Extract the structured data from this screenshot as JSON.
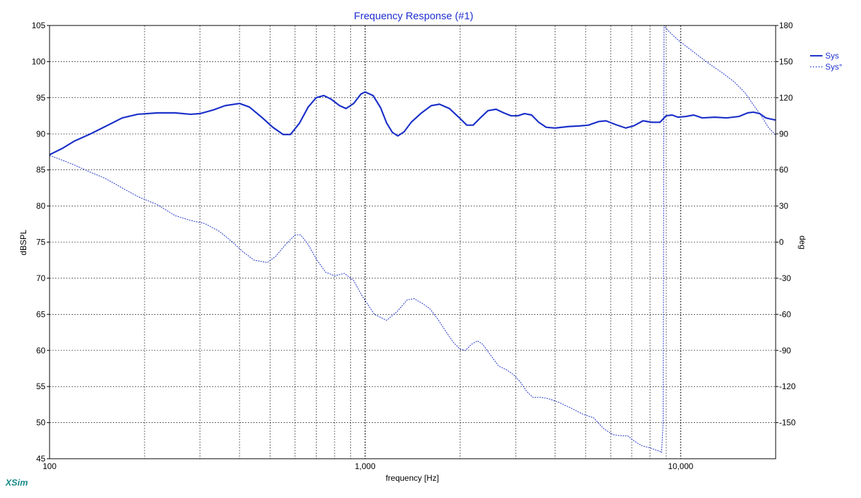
{
  "chart_data": {
    "type": "line",
    "title": "Frequency Response (#1)",
    "xlabel": "frequency [Hz]",
    "ylabel": "dBSPL",
    "y2label": "deg",
    "x_scale": "log",
    "xlim": [
      100,
      20000
    ],
    "ylim": [
      45,
      105
    ],
    "y2lim": [
      -180,
      180
    ],
    "x_tick_labels": [
      {
        "value": 100,
        "label": "100"
      },
      {
        "value": 1000,
        "label": "1,000"
      },
      {
        "value": 10000,
        "label": "10,000"
      }
    ],
    "y_ticks": [
      105,
      100,
      95,
      90,
      85,
      80,
      75,
      70,
      65,
      60,
      55,
      50,
      45
    ],
    "y2_ticks": [
      180,
      150,
      120,
      90,
      60,
      30,
      0,
      -30,
      -60,
      -90,
      -120,
      -150
    ],
    "grid": true,
    "legend": "right",
    "brand": "XSim",
    "series": [
      {
        "name": "Sys",
        "axis": "left",
        "style": "solid",
        "color": "#1a2fc8",
        "points": [
          [
            100,
            87.1
          ],
          [
            110,
            88
          ],
          [
            120,
            89
          ],
          [
            135,
            90
          ],
          [
            150,
            91
          ],
          [
            170,
            92.2
          ],
          [
            190,
            92.7
          ],
          [
            220,
            92.9
          ],
          [
            250,
            92.9
          ],
          [
            280,
            92.7
          ],
          [
            300,
            92.8
          ],
          [
            330,
            93.3
          ],
          [
            360,
            93.9
          ],
          [
            400,
            94.2
          ],
          [
            430,
            93.7
          ],
          [
            470,
            92.3
          ],
          [
            510,
            90.9
          ],
          [
            550,
            89.9
          ],
          [
            580,
            89.9
          ],
          [
            620,
            91.5
          ],
          [
            660,
            93.7
          ],
          [
            700,
            95
          ],
          [
            740,
            95.3
          ],
          [
            780,
            94.8
          ],
          [
            830,
            93.9
          ],
          [
            870,
            93.5
          ],
          [
            920,
            94.2
          ],
          [
            970,
            95.5
          ],
          [
            1000,
            95.8
          ],
          [
            1060,
            95.3
          ],
          [
            1120,
            93.6
          ],
          [
            1170,
            91.5
          ],
          [
            1220,
            90.2
          ],
          [
            1270,
            89.7
          ],
          [
            1330,
            90.3
          ],
          [
            1400,
            91.6
          ],
          [
            1500,
            92.8
          ],
          [
            1620,
            93.9
          ],
          [
            1720,
            94.1
          ],
          [
            1850,
            93.5
          ],
          [
            1980,
            92.3
          ],
          [
            2100,
            91.2
          ],
          [
            2200,
            91.2
          ],
          [
            2330,
            92.3
          ],
          [
            2450,
            93.2
          ],
          [
            2600,
            93.4
          ],
          [
            2750,
            92.9
          ],
          [
            2900,
            92.5
          ],
          [
            3050,
            92.5
          ],
          [
            3200,
            92.8
          ],
          [
            3370,
            92.6
          ],
          [
            3550,
            91.6
          ],
          [
            3750,
            90.9
          ],
          [
            4000,
            90.8
          ],
          [
            4400,
            91
          ],
          [
            4800,
            91.1
          ],
          [
            5100,
            91.2
          ],
          [
            5500,
            91.7
          ],
          [
            5800,
            91.8
          ],
          [
            6200,
            91.3
          ],
          [
            6700,
            90.8
          ],
          [
            7100,
            91.1
          ],
          [
            7600,
            91.8
          ],
          [
            8100,
            91.6
          ],
          [
            8600,
            91.6
          ],
          [
            9000,
            92.5
          ],
          [
            9400,
            92.6
          ],
          [
            9800,
            92.3
          ],
          [
            10400,
            92.4
          ],
          [
            11000,
            92.6
          ],
          [
            11700,
            92.2
          ],
          [
            12800,
            92.3
          ],
          [
            14000,
            92.2
          ],
          [
            15300,
            92.4
          ],
          [
            16300,
            92.9
          ],
          [
            17000,
            93
          ],
          [
            17800,
            92.8
          ],
          [
            18600,
            92.2
          ],
          [
            20000,
            91.9
          ]
        ]
      },
      {
        "name": "Sys°",
        "axis": "right",
        "style": "dashed",
        "color": "#1a2fc8",
        "points": [
          [
            100,
            72
          ],
          [
            110,
            68
          ],
          [
            120,
            64
          ],
          [
            135,
            58
          ],
          [
            150,
            53
          ],
          [
            170,
            45
          ],
          [
            190,
            38
          ],
          [
            220,
            31
          ],
          [
            250,
            22
          ],
          [
            280,
            18
          ],
          [
            310,
            15.5
          ],
          [
            345,
            9
          ],
          [
            380,
            0
          ],
          [
            410,
            -8
          ],
          [
            445,
            -15
          ],
          [
            490,
            -17
          ],
          [
            520,
            -12
          ],
          [
            560,
            -2
          ],
          [
            600,
            6
          ],
          [
            625,
            6
          ],
          [
            660,
            -2
          ],
          [
            700,
            -14
          ],
          [
            750,
            -25
          ],
          [
            800,
            -28
          ],
          [
            860,
            -26
          ],
          [
            920,
            -32
          ],
          [
            980,
            -45
          ],
          [
            1070,
            -60
          ],
          [
            1170,
            -65
          ],
          [
            1260,
            -58
          ],
          [
            1360,
            -48
          ],
          [
            1430,
            -47
          ],
          [
            1520,
            -51
          ],
          [
            1600,
            -55
          ],
          [
            1700,
            -64
          ],
          [
            1800,
            -74
          ],
          [
            1900,
            -83
          ],
          [
            2000,
            -89
          ],
          [
            2080,
            -90
          ],
          [
            2170,
            -85
          ],
          [
            2270,
            -82
          ],
          [
            2360,
            -85
          ],
          [
            2500,
            -94
          ],
          [
            2650,
            -103
          ],
          [
            2800,
            -106
          ],
          [
            2950,
            -110
          ],
          [
            3100,
            -116
          ],
          [
            3250,
            -124
          ],
          [
            3400,
            -129
          ],
          [
            3600,
            -129
          ],
          [
            3800,
            -130
          ],
          [
            4100,
            -133
          ],
          [
            4500,
            -138
          ],
          [
            4900,
            -143
          ],
          [
            5300,
            -146
          ],
          [
            5700,
            -155
          ],
          [
            6100,
            -160
          ],
          [
            6500,
            -161
          ],
          [
            6800,
            -161
          ],
          [
            7100,
            -165
          ],
          [
            7500,
            -169
          ],
          [
            8000,
            -171
          ],
          [
            8600,
            -174
          ],
          [
            8700,
            -175
          ],
          [
            8800,
            -150
          ],
          [
            8820,
            -60
          ],
          [
            8840,
            90
          ],
          [
            8860,
            180
          ],
          [
            9100,
            176
          ],
          [
            9800,
            168
          ],
          [
            10500,
            162
          ],
          [
            11500,
            154
          ],
          [
            12500,
            147
          ],
          [
            13500,
            141
          ],
          [
            14800,
            133
          ],
          [
            16000,
            124
          ],
          [
            17000,
            114
          ],
          [
            18000,
            105
          ],
          [
            19000,
            95
          ],
          [
            20000,
            89
          ]
        ]
      }
    ]
  }
}
